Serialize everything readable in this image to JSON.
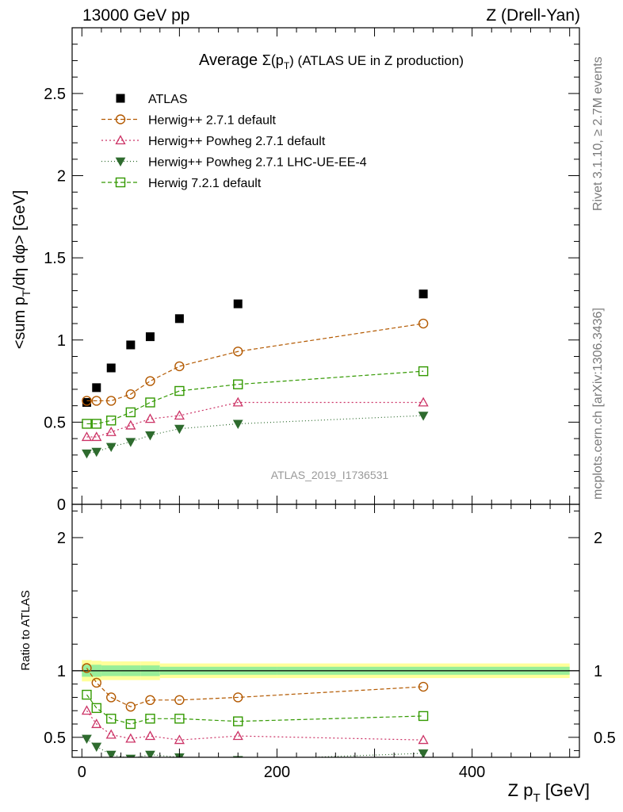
{
  "header": {
    "left": "13000 GeV pp",
    "right": "Z (Drell-Yan)"
  },
  "side_notes": {
    "rivet": "Rivet 3.1.10, ≥ 2.7M events",
    "mcplots": "mcplots.cern.ch [arXiv:1306.3436]"
  },
  "chart_data": [
    {
      "type": "scatter",
      "title": "Average Σ(p_T) (ATLAS UE in Z production)",
      "title_main": "Average ",
      "title_sigma": "Σ(p",
      "title_sub": "T",
      "title_rest": ") (ATLAS UE in Z production)",
      "analysis_tag": "ATLAS_2019_I1736531",
      "ylabel": "<sum p_T/dη dφ> [GeV]",
      "ylabel_parts": {
        "a": "<sum p",
        "sub": "T",
        "b": "/dη dφ> [GeV]"
      },
      "xlim": [
        -10,
        510
      ],
      "ylim": [
        0,
        2.9
      ],
      "yticks": [
        0,
        0.5,
        1,
        1.5,
        2,
        2.5
      ],
      "ytick_labels": [
        "0",
        "0.5",
        "1",
        "1.5",
        "2",
        "2.5"
      ],
      "legend_position": "top-left",
      "x": [
        5,
        15,
        30,
        50,
        70,
        100,
        160,
        350
      ],
      "series": [
        {
          "name": "ATLAS",
          "style": "data",
          "color": "#000000",
          "values": [
            0.62,
            0.71,
            0.83,
            0.97,
            1.02,
            1.13,
            1.22,
            1.28
          ]
        },
        {
          "name": "Herwig++ 2.7.1 default",
          "style": "circle",
          "color": "#b35900",
          "dash": "5,3",
          "values": [
            0.63,
            0.63,
            0.63,
            0.67,
            0.75,
            0.84,
            0.93,
            1.1
          ]
        },
        {
          "name": "Herwig++ Powheg 2.7.1 default",
          "style": "triangle-up",
          "color": "#cc3366",
          "dash": "2,3",
          "values": [
            0.41,
            0.41,
            0.44,
            0.48,
            0.52,
            0.54,
            0.62,
            0.62
          ]
        },
        {
          "name": "Herwig++ Powheg 2.7.1 LHC-UE-EE-4",
          "style": "triangle-down",
          "color": "#2e6b2e",
          "dash": "1,3",
          "values": [
            0.31,
            0.32,
            0.35,
            0.38,
            0.42,
            0.46,
            0.49,
            0.54
          ]
        },
        {
          "name": "Herwig 7.2.1 default",
          "style": "square",
          "color": "#339900",
          "dash": "5,3",
          "values": [
            0.49,
            0.49,
            0.51,
            0.56,
            0.62,
            0.69,
            0.73,
            0.81
          ]
        }
      ]
    },
    {
      "type": "scatter",
      "title": "",
      "ylabel": "Ratio to ATLAS",
      "xlabel": "Z p_T [GeV]",
      "xlabel_parts": {
        "a": "Z p",
        "sub": "T",
        "b": " [GeV]"
      },
      "xlim": [
        -10,
        510
      ],
      "ylim": [
        0.35,
        2.25
      ],
      "xticks": [
        0,
        200,
        400
      ],
      "xtick_labels": [
        "0",
        "200",
        "400"
      ],
      "yticks": [
        0.5,
        1,
        2
      ],
      "ytick_labels": [
        "0.5",
        "1",
        "2"
      ],
      "bands": {
        "bins": [
          [
            0,
            10,
            20,
            40,
            60,
            80,
            120,
            200,
            500
          ]
        ],
        "yellow_half": [
          0.08,
          0.075,
          0.07,
          0.07,
          0.07,
          0.055,
          0.055,
          0.055
        ],
        "green_half": [
          0.045,
          0.045,
          0.04,
          0.04,
          0.04,
          0.03,
          0.03,
          0.03
        ]
      },
      "x": [
        5,
        15,
        30,
        50,
        70,
        100,
        160,
        350
      ],
      "series": [
        {
          "name": "Herwig++ 2.7.1 default",
          "style": "circle",
          "color": "#b35900",
          "dash": "5,3",
          "values": [
            1.02,
            0.91,
            0.8,
            0.73,
            0.78,
            0.78,
            0.8,
            0.88
          ]
        },
        {
          "name": "Herwig++ Powheg 2.7.1 default",
          "style": "triangle-up",
          "color": "#cc3366",
          "dash": "2,3",
          "values": [
            0.7,
            0.6,
            0.52,
            0.49,
            0.51,
            0.48,
            0.51,
            0.48
          ]
        },
        {
          "name": "Herwig++ Powheg 2.7.1 LHC-UE-EE-4",
          "style": "triangle-down",
          "color": "#2e6b2e",
          "dash": "1,3",
          "values": [
            0.49,
            0.43,
            0.37,
            0.34,
            0.37,
            0.35,
            0.33,
            0.38
          ]
        },
        {
          "name": "Herwig 7.2.1 default",
          "style": "square",
          "color": "#339900",
          "dash": "5,3",
          "values": [
            0.82,
            0.72,
            0.64,
            0.6,
            0.64,
            0.64,
            0.62,
            0.66
          ]
        }
      ]
    }
  ]
}
